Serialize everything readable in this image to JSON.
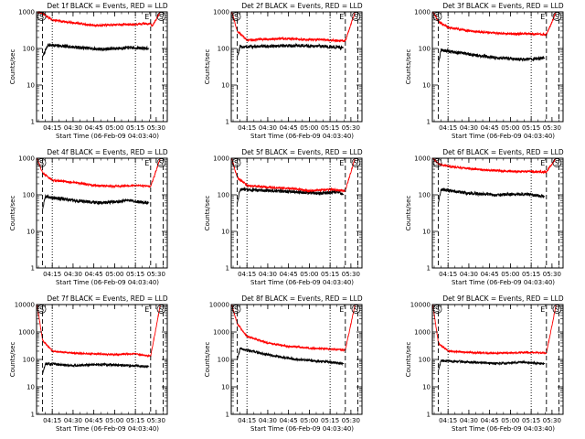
{
  "x_ticks": [
    "04:15",
    "04:30",
    "04:45",
    "05:00",
    "05:15",
    "05:30"
  ],
  "x_label": "Start Time (06-Feb-09 04:03:40)",
  "y_label": "Counts/sec",
  "y_ticks": [
    "1",
    "10",
    "100",
    "1000",
    "10000"
  ],
  "colors": {
    "events": "#000000",
    "lld": "#ff0000"
  },
  "markers": {
    "start": "S",
    "end": "E"
  },
  "chart_data": [
    {
      "type": "line",
      "title": "Det 1f BLACK = Events, RED = LLD",
      "x_range": [
        "04:03:40",
        "05:38:00"
      ],
      "yscale": "log",
      "ylim": [
        1,
        1000
      ],
      "x_ticks": [
        "04:15",
        "04:30",
        "04:45",
        "05:00",
        "05:15",
        "05:30"
      ],
      "dashed_lines": [
        "04:08",
        "05:26",
        "05:35"
      ],
      "dotted_lines": [
        "04:15",
        "05:15"
      ],
      "series": [
        {
          "name": "Events",
          "color": "#000000",
          "points": [
            [
              "04:08",
              60
            ],
            [
              "04:12",
              125
            ],
            [
              "04:30",
              110
            ],
            [
              "04:50",
              95
            ],
            [
              "05:10",
              105
            ],
            [
              "05:25",
              100
            ]
          ]
        },
        {
          "name": "LLD",
          "color": "#ff0000",
          "points": [
            [
              "04:04",
              1000
            ],
            [
              "04:08",
              900
            ],
            [
              "04:15",
              600
            ],
            [
              "04:30",
              500
            ],
            [
              "04:45",
              430
            ],
            [
              "05:00",
              440
            ],
            [
              "05:15",
              460
            ],
            [
              "05:26",
              480
            ],
            [
              "05:27",
              400
            ],
            [
              "05:33",
              1000
            ]
          ]
        }
      ]
    },
    {
      "type": "line",
      "title": "Det 2f BLACK = Events, RED = LLD",
      "x_range": [
        "04:03:40",
        "05:38:00"
      ],
      "yscale": "log",
      "ylim": [
        1,
        1000
      ],
      "x_ticks": [
        "04:15",
        "04:30",
        "04:45",
        "05:00",
        "05:15",
        "05:30"
      ],
      "dashed_lines": [
        "04:08",
        "05:26",
        "05:35"
      ],
      "dotted_lines": [
        "04:15",
        "05:15"
      ],
      "series": [
        {
          "name": "Events",
          "color": "#000000",
          "points": [
            [
              "04:08",
              60
            ],
            [
              "04:10",
              110
            ],
            [
              "04:30",
              115
            ],
            [
              "04:50",
              120
            ],
            [
              "05:10",
              115
            ],
            [
              "05:25",
              105
            ]
          ]
        },
        {
          "name": "LLD",
          "color": "#ff0000",
          "points": [
            [
              "04:04",
              1000
            ],
            [
              "04:08",
              300
            ],
            [
              "04:15",
              170
            ],
            [
              "04:30",
              180
            ],
            [
              "04:45",
              185
            ],
            [
              "05:00",
              175
            ],
            [
              "05:15",
              170
            ],
            [
              "05:26",
              160
            ],
            [
              "05:33",
              1000
            ]
          ]
        }
      ]
    },
    {
      "type": "line",
      "title": "Det 3f BLACK = Events, RED = LLD",
      "x_range": [
        "04:03:40",
        "05:38:00"
      ],
      "yscale": "log",
      "ylim": [
        1,
        1000
      ],
      "x_ticks": [
        "04:15",
        "04:30",
        "04:45",
        "05:00",
        "05:15",
        "05:30"
      ],
      "dashed_lines": [
        "04:08",
        "05:26",
        "05:35"
      ],
      "dotted_lines": [
        "04:15",
        "05:15"
      ],
      "series": [
        {
          "name": "Events",
          "color": "#000000",
          "points": [
            [
              "04:08",
              40
            ],
            [
              "04:10",
              90
            ],
            [
              "04:30",
              70
            ],
            [
              "04:50",
              55
            ],
            [
              "05:10",
              50
            ],
            [
              "05:25",
              55
            ]
          ]
        },
        {
          "name": "LLD",
          "color": "#ff0000",
          "points": [
            [
              "04:04",
              1000
            ],
            [
              "04:08",
              550
            ],
            [
              "04:15",
              380
            ],
            [
              "04:30",
              300
            ],
            [
              "04:45",
              270
            ],
            [
              "05:00",
              250
            ],
            [
              "05:15",
              250
            ],
            [
              "05:26",
              240
            ],
            [
              "05:33",
              1000
            ]
          ]
        }
      ]
    },
    {
      "type": "line",
      "title": "Det 4f BLACK = Events, RED = LLD",
      "x_range": [
        "04:03:40",
        "05:38:00"
      ],
      "yscale": "log",
      "ylim": [
        1,
        1000
      ],
      "x_ticks": [
        "04:15",
        "04:30",
        "04:45",
        "05:00",
        "05:15",
        "05:30"
      ],
      "dashed_lines": [
        "04:08",
        "05:26",
        "05:35"
      ],
      "dotted_lines": [
        "04:15",
        "05:15"
      ],
      "series": [
        {
          "name": "Events",
          "color": "#000000",
          "points": [
            [
              "04:08",
              40
            ],
            [
              "04:10",
              90
            ],
            [
              "04:30",
              70
            ],
            [
              "04:50",
              60
            ],
            [
              "05:10",
              70
            ],
            [
              "05:25",
              60
            ]
          ]
        },
        {
          "name": "LLD",
          "color": "#ff0000",
          "points": [
            [
              "04:04",
              1000
            ],
            [
              "04:08",
              400
            ],
            [
              "04:15",
              250
            ],
            [
              "04:30",
              220
            ],
            [
              "04:45",
              180
            ],
            [
              "05:00",
              170
            ],
            [
              "05:15",
              180
            ],
            [
              "05:26",
              170
            ],
            [
              "05:33",
              1000
            ]
          ]
        }
      ]
    },
    {
      "type": "line",
      "title": "Det 5f BLACK = Events, RED = LLD",
      "x_range": [
        "04:03:40",
        "05:38:00"
      ],
      "yscale": "log",
      "ylim": [
        1,
        1000
      ],
      "x_ticks": [
        "04:15",
        "04:30",
        "04:45",
        "05:00",
        "05:15",
        "05:30"
      ],
      "dashed_lines": [
        "04:08",
        "05:26",
        "05:35"
      ],
      "dotted_lines": [
        "04:15",
        "05:15"
      ],
      "series": [
        {
          "name": "Events",
          "color": "#000000",
          "points": [
            [
              "04:08",
              60
            ],
            [
              "04:10",
              140
            ],
            [
              "04:30",
              130
            ],
            [
              "04:50",
              120
            ],
            [
              "05:05",
              110
            ],
            [
              "05:20",
              120
            ],
            [
              "05:25",
              100
            ]
          ]
        },
        {
          "name": "LLD",
          "color": "#ff0000",
          "points": [
            [
              "04:04",
              1000
            ],
            [
              "04:08",
              300
            ],
            [
              "04:15",
              180
            ],
            [
              "04:30",
              160
            ],
            [
              "04:45",
              150
            ],
            [
              "05:00",
              130
            ],
            [
              "05:15",
              140
            ],
            [
              "05:26",
              130
            ],
            [
              "05:33",
              1000
            ]
          ]
        }
      ]
    },
    {
      "type": "line",
      "title": "Det 6f BLACK = Events, RED = LLD",
      "x_range": [
        "04:03:40",
        "05:38:00"
      ],
      "yscale": "log",
      "ylim": [
        1,
        1000
      ],
      "x_ticks": [
        "04:15",
        "04:30",
        "04:45",
        "05:00",
        "05:15",
        "05:30"
      ],
      "dashed_lines": [
        "04:08",
        "05:26",
        "05:35"
      ],
      "dotted_lines": [
        "04:15",
        "05:15"
      ],
      "series": [
        {
          "name": "Events",
          "color": "#000000",
          "points": [
            [
              "04:08",
              60
            ],
            [
              "04:10",
              140
            ],
            [
              "04:30",
              110
            ],
            [
              "04:50",
              100
            ],
            [
              "05:10",
              105
            ],
            [
              "05:25",
              90
            ]
          ]
        },
        {
          "name": "LLD",
          "color": "#ff0000",
          "points": [
            [
              "04:04",
              1000
            ],
            [
              "04:08",
              700
            ],
            [
              "04:15",
              600
            ],
            [
              "04:30",
              520
            ],
            [
              "04:45",
              470
            ],
            [
              "05:00",
              440
            ],
            [
              "05:15",
              430
            ],
            [
              "05:26",
              420
            ],
            [
              "05:33",
              1000
            ]
          ]
        }
      ]
    },
    {
      "type": "line",
      "title": "Det 7f BLACK = Events, RED = LLD",
      "x_range": [
        "04:03:40",
        "05:38:00"
      ],
      "yscale": "log",
      "ylim": [
        1,
        10000
      ],
      "x_ticks": [
        "04:15",
        "04:30",
        "04:45",
        "05:00",
        "05:15",
        "05:30"
      ],
      "dashed_lines": [
        "04:08",
        "05:26",
        "05:35"
      ],
      "dotted_lines": [
        "04:15",
        "05:15"
      ],
      "series": [
        {
          "name": "Events",
          "color": "#000000",
          "points": [
            [
              "04:08",
              30
            ],
            [
              "04:10",
              70
            ],
            [
              "04:30",
              60
            ],
            [
              "04:50",
              65
            ],
            [
              "05:10",
              60
            ],
            [
              "05:25",
              55
            ]
          ]
        },
        {
          "name": "LLD",
          "color": "#ff0000",
          "points": [
            [
              "04:04",
              10000
            ],
            [
              "04:08",
              500
            ],
            [
              "04:15",
              200
            ],
            [
              "04:30",
              170
            ],
            [
              "04:45",
              160
            ],
            [
              "05:00",
              150
            ],
            [
              "05:15",
              160
            ],
            [
              "05:26",
              130
            ],
            [
              "05:33",
              10000
            ]
          ]
        }
      ]
    },
    {
      "type": "line",
      "title": "Det 8f BLACK = Events, RED = LLD",
      "x_range": [
        "04:03:40",
        "05:38:00"
      ],
      "yscale": "log",
      "ylim": [
        1,
        10000
      ],
      "x_ticks": [
        "04:15",
        "04:30",
        "04:45",
        "05:00",
        "05:15",
        "05:30"
      ],
      "dashed_lines": [
        "04:08",
        "05:26",
        "05:35"
      ],
      "dotted_lines": [
        "04:15",
        "05:15"
      ],
      "series": [
        {
          "name": "Events",
          "color": "#000000",
          "points": [
            [
              "04:08",
              100
            ],
            [
              "04:10",
              250
            ],
            [
              "04:30",
              150
            ],
            [
              "04:50",
              100
            ],
            [
              "05:10",
              85
            ],
            [
              "05:25",
              70
            ]
          ]
        },
        {
          "name": "LLD",
          "color": "#ff0000",
          "points": [
            [
              "04:04",
              10000
            ],
            [
              "04:08",
              2000
            ],
            [
              "04:15",
              700
            ],
            [
              "04:30",
              400
            ],
            [
              "04:45",
              300
            ],
            [
              "05:00",
              260
            ],
            [
              "05:15",
              240
            ],
            [
              "05:26",
              220
            ],
            [
              "05:33",
              10000
            ]
          ]
        }
      ]
    },
    {
      "type": "line",
      "title": "Det 9f BLACK = Events, RED = LLD",
      "x_range": [
        "04:03:40",
        "05:38:00"
      ],
      "yscale": "log",
      "ylim": [
        1,
        10000
      ],
      "x_ticks": [
        "04:15",
        "04:30",
        "04:45",
        "05:00",
        "05:15",
        "05:30"
      ],
      "dashed_lines": [
        "04:08",
        "05:26",
        "05:35"
      ],
      "dotted_lines": [
        "04:15",
        "05:15"
      ],
      "series": [
        {
          "name": "Events",
          "color": "#000000",
          "points": [
            [
              "04:08",
              40
            ],
            [
              "04:10",
              90
            ],
            [
              "04:30",
              80
            ],
            [
              "04:50",
              70
            ],
            [
              "05:10",
              80
            ],
            [
              "05:25",
              70
            ]
          ]
        },
        {
          "name": "LLD",
          "color": "#ff0000",
          "points": [
            [
              "04:04",
              10000
            ],
            [
              "04:08",
              400
            ],
            [
              "04:15",
              200
            ],
            [
              "04:30",
              180
            ],
            [
              "04:45",
              170
            ],
            [
              "05:00",
              175
            ],
            [
              "05:15",
              180
            ],
            [
              "05:26",
              170
            ],
            [
              "05:33",
              10000
            ]
          ]
        }
      ]
    }
  ]
}
